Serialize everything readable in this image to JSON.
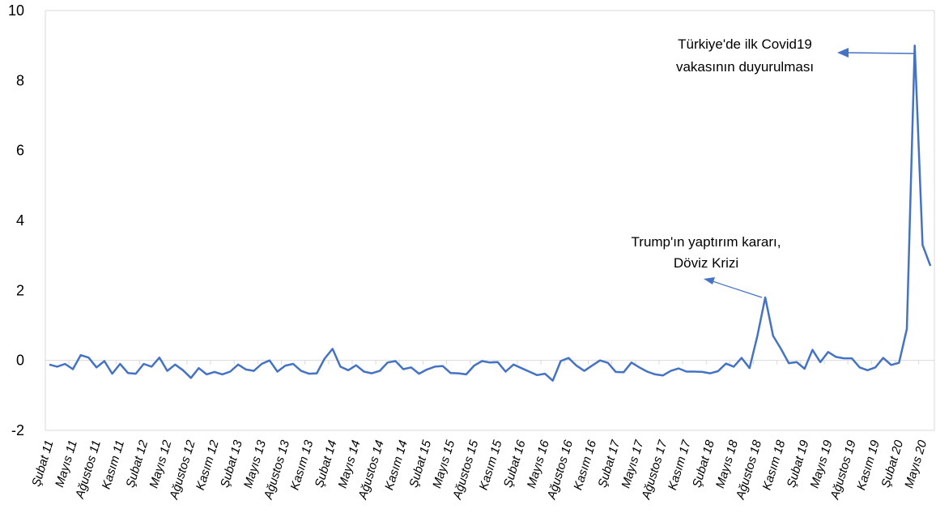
{
  "chart_data": {
    "type": "line",
    "title": "",
    "xlabel": "",
    "ylabel": "",
    "ylim": [
      -2,
      10
    ],
    "yticks": [
      -2,
      0,
      2,
      4,
      6,
      8,
      10
    ],
    "ytick_labels": [
      "-2",
      "0",
      "2",
      "4",
      "6",
      "8",
      "10"
    ],
    "grid": false,
    "legend": "none",
    "line_color": "#4472C4",
    "x_tick_labels": [
      "Şubat 11",
      "Mayıs 11",
      "Ağustos 11",
      "Kasım 11",
      "Şubat 12",
      "Mayıs 12",
      "Ağustos 12",
      "Kasım 12",
      "Şubat 13",
      "Mayıs 13",
      "Ağustos 13",
      "Kasım 13",
      "Şubat 14",
      "Mayıs 14",
      "Ağustos 14",
      "Kasım 14",
      "Şubat 15",
      "Mayıs 15",
      "Ağustos 15",
      "Kasım 15",
      "Şubat 16",
      "Mayıs 16",
      "Ağustos 16",
      "Kasım 16",
      "Şubat 17",
      "Mayıs 17",
      "Ağustos 17",
      "Kasım 17",
      "Şubat 18",
      "Mayıs 18",
      "Ağustos 18",
      "Kasım 18",
      "Şubat 19",
      "Mayıs 19",
      "Ağustos 19",
      "Kasım 19",
      "Şubat 20",
      "Mayıs 20"
    ],
    "values": [
      -0.12,
      -0.18,
      -0.1,
      -0.25,
      0.15,
      0.08,
      -0.2,
      -0.02,
      -0.38,
      -0.1,
      -0.36,
      -0.38,
      -0.1,
      -0.18,
      0.08,
      -0.3,
      -0.12,
      -0.28,
      -0.5,
      -0.22,
      -0.4,
      -0.33,
      -0.4,
      -0.32,
      -0.12,
      -0.26,
      -0.3,
      -0.1,
      0.0,
      -0.32,
      -0.15,
      -0.1,
      -0.3,
      -0.38,
      -0.37,
      0.05,
      0.33,
      -0.18,
      -0.28,
      -0.14,
      -0.32,
      -0.37,
      -0.3,
      -0.06,
      -0.02,
      -0.25,
      -0.2,
      -0.38,
      -0.26,
      -0.18,
      -0.16,
      -0.36,
      -0.37,
      -0.4,
      -0.15,
      -0.02,
      -0.06,
      -0.05,
      -0.32,
      -0.12,
      -0.22,
      -0.32,
      -0.42,
      -0.38,
      -0.58,
      -0.02,
      0.07,
      -0.15,
      -0.3,
      -0.15,
      0.0,
      -0.07,
      -0.33,
      -0.34,
      -0.06,
      -0.2,
      -0.32,
      -0.4,
      -0.43,
      -0.3,
      -0.23,
      -0.32,
      -0.32,
      -0.33,
      -0.37,
      -0.31,
      -0.09,
      -0.18,
      0.07,
      -0.22,
      0.7,
      1.8,
      0.7,
      0.33,
      -0.08,
      -0.05,
      -0.24,
      0.3,
      -0.05,
      0.24,
      0.1,
      0.06,
      0.06,
      -0.2,
      -0.28,
      -0.2,
      0.07,
      -0.13,
      -0.07,
      0.9,
      9.0,
      3.3,
      2.7
    ],
    "annotations": [
      {
        "lines": [
          "Türkiye'de ilk Covid19",
          "vakasının duyurulması"
        ]
      },
      {
        "lines": [
          "Trump'ın yaptırım kararı,",
          "Döviz Krizi"
        ]
      }
    ]
  }
}
